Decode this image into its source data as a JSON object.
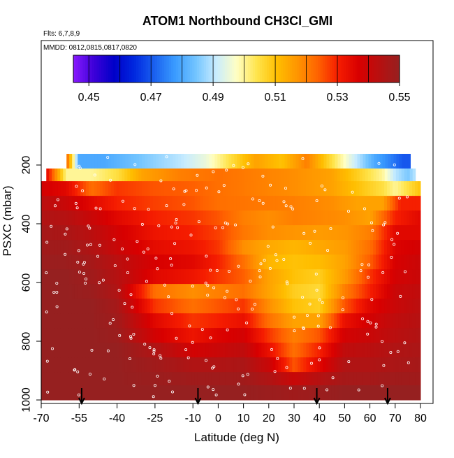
{
  "chart_data": {
    "type": "heatmap",
    "title": "ATOM1 Northbound CH3Cl_GMI",
    "annotations": [
      "Flts: 6,7,8,9",
      "MMDD: 0812,0815,0817,0820"
    ],
    "xlabel": "Latitude (deg N)",
    "ylabel": "PSXC (mbar)",
    "xlim": [
      -70,
      80
    ],
    "ylim": [
      1000,
      150
    ],
    "x_ticks": [
      -70,
      -55,
      -40,
      -25,
      -10,
      0,
      10,
      20,
      30,
      40,
      50,
      60,
      70,
      80
    ],
    "y_ticks": [
      200,
      400,
      600,
      800,
      1000
    ],
    "colorbar": {
      "min": 0.445,
      "max": 0.55,
      "ticks": [
        0.45,
        0.47,
        0.49,
        0.51,
        0.53,
        0.55
      ],
      "colors": [
        "#8a1aff",
        "#3d00d9",
        "#0000c8",
        "#0028e0",
        "#1b62f0",
        "#3a9cff",
        "#72c4ff",
        "#c8ecff",
        "#ffffc4",
        "#ffe44c",
        "#ffbe00",
        "#ff9400",
        "#ff6200",
        "#f51c00",
        "#d80000",
        "#b81010",
        "#962020"
      ]
    },
    "arrows_lat": [
      -54,
      -8,
      39,
      67
    ],
    "field_rows": [
      {
        "p": 195,
        "x": [
          -60,
          -55,
          -45,
          -30,
          -15,
          -5,
          5,
          15,
          25,
          35,
          45,
          55,
          62,
          68,
          73,
          76
        ],
        "v": [
          0.525,
          0.48,
          0.48,
          0.485,
          0.49,
          0.495,
          0.505,
          0.515,
          0.51,
          0.52,
          0.505,
          0.49,
          0.48,
          0.475,
          0.47,
          0.47
        ]
      },
      {
        "p": 235,
        "x": [
          -68,
          -60,
          -50,
          -40,
          -30,
          -15,
          0,
          15,
          30,
          45,
          55,
          65,
          70,
          75,
          78
        ],
        "v": [
          0.535,
          0.5,
          0.5,
          0.505,
          0.515,
          0.52,
          0.522,
          0.52,
          0.518,
          0.515,
          0.508,
          0.5,
          0.49,
          0.485,
          0.49
        ]
      },
      {
        "p": 280,
        "x": [
          -70,
          -60,
          -50,
          -40,
          -25,
          -10,
          0,
          15,
          30,
          45,
          55,
          65,
          70,
          75,
          80
        ],
        "v": [
          0.538,
          0.535,
          0.522,
          0.528,
          0.525,
          0.524,
          0.522,
          0.52,
          0.518,
          0.515,
          0.51,
          0.505,
          0.5,
          0.505,
          0.51
        ]
      },
      {
        "p": 330,
        "x": [
          -70,
          -60,
          -50,
          -40,
          -25,
          -10,
          0,
          15,
          30,
          45,
          55,
          65,
          72,
          80
        ],
        "v": [
          0.543,
          0.54,
          0.535,
          0.53,
          0.527,
          0.525,
          0.522,
          0.521,
          0.52,
          0.518,
          0.515,
          0.515,
          0.53,
          0.53
        ]
      },
      {
        "p": 380,
        "x": [
          -70,
          -60,
          -50,
          -40,
          -25,
          -10,
          0,
          10,
          20,
          30,
          40,
          50,
          60,
          70,
          80
        ],
        "v": [
          0.545,
          0.544,
          0.54,
          0.535,
          0.53,
          0.528,
          0.525,
          0.52,
          0.518,
          0.52,
          0.519,
          0.518,
          0.515,
          0.53,
          0.535
        ]
      },
      {
        "p": 430,
        "x": [
          -70,
          -60,
          -50,
          -40,
          -25,
          -10,
          0,
          10,
          20,
          30,
          40,
          50,
          60,
          70,
          80
        ],
        "v": [
          0.547,
          0.546,
          0.543,
          0.538,
          0.532,
          0.53,
          0.527,
          0.521,
          0.518,
          0.517,
          0.516,
          0.517,
          0.52,
          0.535,
          0.535
        ]
      },
      {
        "p": 480,
        "x": [
          -70,
          -60,
          -50,
          -40,
          -25,
          -10,
          0,
          10,
          20,
          30,
          40,
          50,
          60,
          70,
          80
        ],
        "v": [
          0.548,
          0.548,
          0.545,
          0.54,
          0.534,
          0.532,
          0.528,
          0.518,
          0.514,
          0.512,
          0.514,
          0.516,
          0.522,
          0.536,
          0.538
        ]
      },
      {
        "p": 530,
        "x": [
          -70,
          -60,
          -50,
          -40,
          -25,
          -10,
          0,
          10,
          20,
          30,
          40,
          50,
          60,
          70,
          80
        ],
        "v": [
          0.549,
          0.549,
          0.547,
          0.543,
          0.537,
          0.535,
          0.53,
          0.522,
          0.512,
          0.51,
          0.511,
          0.515,
          0.524,
          0.537,
          0.54
        ]
      },
      {
        "p": 580,
        "x": [
          -70,
          -60,
          -50,
          -40,
          -25,
          -10,
          0,
          10,
          20,
          30,
          40,
          50,
          60,
          70,
          80
        ],
        "v": [
          0.55,
          0.55,
          0.548,
          0.544,
          0.535,
          0.532,
          0.528,
          0.524,
          0.515,
          0.51,
          0.508,
          0.516,
          0.528,
          0.538,
          0.54
        ]
      },
      {
        "p": 630,
        "x": [
          -70,
          -60,
          -50,
          -40,
          -25,
          -10,
          0,
          10,
          20,
          30,
          40,
          50,
          60,
          70,
          80
        ],
        "v": [
          0.55,
          0.55,
          0.549,
          0.545,
          0.522,
          0.518,
          0.52,
          0.522,
          0.515,
          0.508,
          0.506,
          0.52,
          0.53,
          0.54,
          0.542
        ]
      },
      {
        "p": 680,
        "x": [
          -70,
          -60,
          -50,
          -40,
          -25,
          -10,
          0,
          10,
          20,
          30,
          40,
          50,
          60,
          70,
          80
        ],
        "v": [
          0.55,
          0.55,
          0.55,
          0.547,
          0.528,
          0.522,
          0.525,
          0.528,
          0.518,
          0.51,
          0.508,
          0.525,
          0.535,
          0.54,
          0.543
        ]
      },
      {
        "p": 730,
        "x": [
          -70,
          -60,
          -50,
          -40,
          -25,
          -10,
          0,
          10,
          20,
          30,
          40,
          50,
          60,
          70,
          80
        ],
        "v": [
          0.55,
          0.55,
          0.55,
          0.548,
          0.535,
          0.528,
          0.53,
          0.533,
          0.522,
          0.515,
          0.515,
          0.533,
          0.538,
          0.542,
          0.544
        ]
      },
      {
        "p": 780,
        "x": [
          -70,
          -60,
          -50,
          -40,
          -25,
          -10,
          0,
          10,
          20,
          30,
          40,
          50,
          60,
          70,
          80
        ],
        "v": [
          0.55,
          0.55,
          0.55,
          0.549,
          0.538,
          0.532,
          0.536,
          0.538,
          0.528,
          0.52,
          0.525,
          0.538,
          0.54,
          0.543,
          0.545
        ]
      },
      {
        "p": 830,
        "x": [
          -70,
          -60,
          -50,
          -40,
          -25,
          -10,
          0,
          10,
          20,
          30,
          40,
          50,
          60,
          70,
          80
        ],
        "v": [
          0.55,
          0.55,
          0.55,
          0.55,
          0.545,
          0.538,
          0.54,
          0.542,
          0.533,
          0.522,
          0.53,
          0.542,
          0.543,
          0.545,
          0.546
        ]
      },
      {
        "p": 880,
        "x": [
          -70,
          -60,
          -50,
          -40,
          -25,
          -10,
          0,
          10,
          20,
          30,
          40,
          50,
          60,
          70,
          80
        ],
        "v": [
          0.55,
          0.55,
          0.55,
          0.55,
          0.548,
          0.545,
          0.545,
          0.546,
          0.54,
          0.525,
          0.535,
          0.545,
          0.545,
          0.546,
          0.547
        ]
      },
      {
        "p": 930,
        "x": [
          -70,
          -60,
          -50,
          -40,
          -25,
          -10,
          0,
          10,
          20,
          30,
          40,
          50,
          60,
          70,
          80
        ],
        "v": [
          0.55,
          0.55,
          0.55,
          0.55,
          0.549,
          0.548,
          0.548,
          0.548,
          0.545,
          0.54,
          0.544,
          0.547,
          0.547,
          0.548,
          0.548
        ]
      },
      {
        "p": 975,
        "x": [
          -70,
          -60,
          -50,
          -40,
          -25,
          -10,
          0,
          10,
          20,
          30,
          40,
          50,
          60,
          70,
          80
        ],
        "v": [
          0.55,
          0.55,
          0.55,
          0.55,
          0.55,
          0.55,
          0.55,
          0.55,
          0.549,
          0.548,
          0.549,
          0.55,
          0.55,
          0.55,
          0.55
        ]
      }
    ]
  }
}
